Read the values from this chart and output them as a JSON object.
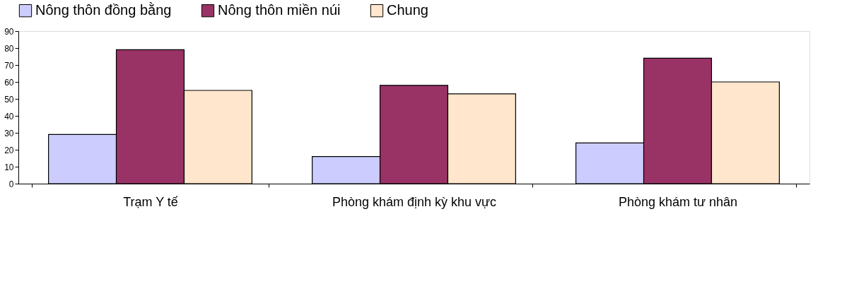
{
  "chart_data": {
    "type": "bar",
    "categories": [
      "Trạm Y tế",
      "Phòng khám định kỳ khu vực",
      "Phòng khám tư nhân"
    ],
    "series": [
      {
        "name": "Nông thôn đồng bằng",
        "color": "#ccccff",
        "values": [
          29,
          16,
          24
        ]
      },
      {
        "name": "Nông thôn miền núi",
        "color": "#993366",
        "values": [
          79,
          58,
          74
        ]
      },
      {
        "name": "Chung",
        "color": "#ffe6cc",
        "values": [
          55,
          53,
          60
        ]
      }
    ],
    "ylim": [
      0,
      90
    ],
    "yticks": [
      0,
      10,
      20,
      30,
      40,
      50,
      60,
      70,
      80,
      90
    ],
    "grid": false,
    "legend": "top"
  }
}
